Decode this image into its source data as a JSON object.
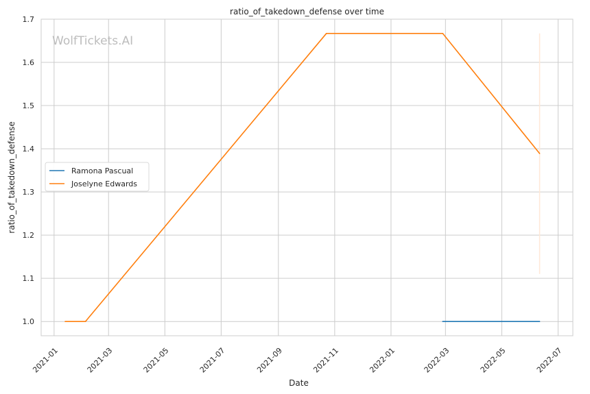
{
  "chart_data": {
    "type": "line",
    "title": "ratio_of_takedown_defense over time",
    "xlabel": "Date",
    "ylabel": "ratio_of_takedown_defense",
    "watermark": "WolfTickets.AI",
    "grid": true,
    "legend_position": "center-left",
    "x_ticks": [
      "2021-01",
      "2021-03",
      "2021-05",
      "2021-07",
      "2021-09",
      "2021-11",
      "2022-01",
      "2022-03",
      "2022-05",
      "2022-07"
    ],
    "y_ticks": [
      "1.0",
      "1.1",
      "1.2",
      "1.3",
      "1.4",
      "1.5",
      "1.6",
      "1.7"
    ],
    "xlim": [
      "2020-12-18",
      "2022-07-17"
    ],
    "ylim": [
      0.967,
      1.7
    ],
    "series": [
      {
        "name": "Ramona Pascual",
        "color": "#1f77b4",
        "points": [
          {
            "x": "2022-02-26",
            "y": 1.0
          },
          {
            "x": "2022-06-11",
            "y": 1.0
          }
        ]
      },
      {
        "name": "Joselyne Edwards",
        "color": "#ff7f0e",
        "points": [
          {
            "x": "2021-01-13",
            "y": 1.0
          },
          {
            "x": "2021-02-04",
            "y": 1.0
          },
          {
            "x": "2021-10-23",
            "y": 1.667
          },
          {
            "x": "2022-02-26",
            "y": 1.667
          },
          {
            "x": "2022-06-11",
            "y": 1.389
          }
        ]
      }
    ],
    "annotations": [
      {
        "type": "vertical-band",
        "x": "2022-06-11",
        "y_range": [
          1.11,
          1.667
        ],
        "color": "#ffe8d6"
      }
    ]
  }
}
